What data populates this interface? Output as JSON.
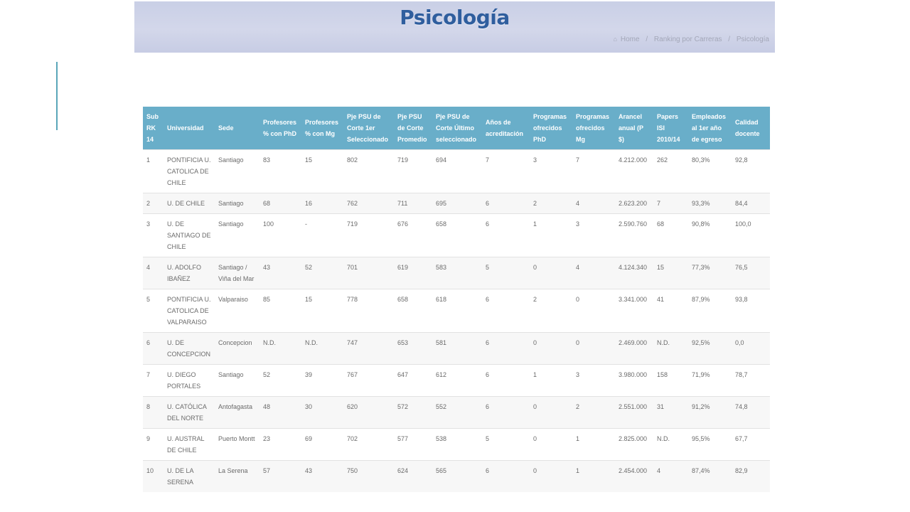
{
  "header": {
    "title": "Psicología",
    "breadcrumb": {
      "home": "Home",
      "ranking": "Ranking por Carreras",
      "current": "Psicología"
    }
  },
  "table": {
    "columns": [
      "Sub RK 14",
      "Universidad",
      "Sede",
      "Profesores % con PhD",
      "Profesores % con Mg",
      "Pje PSU de Corte 1er Seleccionado",
      "Pje PSU de Corte Promedio",
      "Pje PSU de Corte Último seleccionado",
      "Años de acreditación",
      "Programas ofrecidos PhD",
      "Programas ofrecidos Mg",
      "Arancel anual (P $)",
      "Papers ISI 2010/14",
      "Empleados al 1er año de egreso",
      "Calidad docente"
    ],
    "rows": [
      [
        "1",
        "PONTIFICIA U. CATOLICA DE CHILE",
        "Santiago",
        "83",
        "15",
        "802",
        "719",
        "694",
        "7",
        "3",
        "7",
        "4.212.000",
        "262",
        "80,3%",
        "92,8"
      ],
      [
        "2",
        "U. DE CHILE",
        "Santiago",
        "68",
        "16",
        "762",
        "711",
        "695",
        "6",
        "2",
        "4",
        "2.623.200",
        "7",
        "93,3%",
        "84,4"
      ],
      [
        "3",
        "U. DE SANTIAGO DE CHILE",
        "Santiago",
        "100",
        "-",
        "719",
        "676",
        "658",
        "6",
        "1",
        "3",
        "2.590.760",
        "68",
        "90,8%",
        "100,0"
      ],
      [
        "4",
        "U. ADOLFO IBAÑEZ",
        "Santiago / Viña del Mar",
        "43",
        "52",
        "701",
        "619",
        "583",
        "5",
        "0",
        "4",
        "4.124.340",
        "15",
        "77,3%",
        "76,5"
      ],
      [
        "5",
        "PONTIFICIA U. CATOLICA DE VALPARAISO",
        "Valparaiso",
        "85",
        "15",
        "778",
        "658",
        "618",
        "6",
        "2",
        "0",
        "3.341.000",
        "41",
        "87,9%",
        "93,8"
      ],
      [
        "6",
        "U. DE CONCEPCION",
        "Concepcion",
        "N.D.",
        "N.D.",
        "747",
        "653",
        "581",
        "6",
        "0",
        "0",
        "2.469.000",
        "N.D.",
        "92,5%",
        "0,0"
      ],
      [
        "7",
        "U. DIEGO PORTALES",
        "Santiago",
        "52",
        "39",
        "767",
        "647",
        "612",
        "6",
        "1",
        "3",
        "3.980.000",
        "158",
        "71,9%",
        "78,7"
      ],
      [
        "8",
        "U. CATÓLICA DEL NORTE",
        "Antofagasta",
        "48",
        "30",
        "620",
        "572",
        "552",
        "6",
        "0",
        "2",
        "2.551.000",
        "31",
        "91,2%",
        "74,8"
      ],
      [
        "9",
        "U. AUSTRAL DE CHILE",
        "Puerto Montt",
        "23",
        "69",
        "702",
        "577",
        "538",
        "5",
        "0",
        "1",
        "2.825.000",
        "N.D.",
        "95,5%",
        "67,7"
      ],
      [
        "10",
        "U. DE LA SERENA",
        "La Serena",
        "57",
        "43",
        "750",
        "624",
        "565",
        "6",
        "0",
        "1",
        "2.454.000",
        "4",
        "87,4%",
        "82,9"
      ]
    ]
  }
}
